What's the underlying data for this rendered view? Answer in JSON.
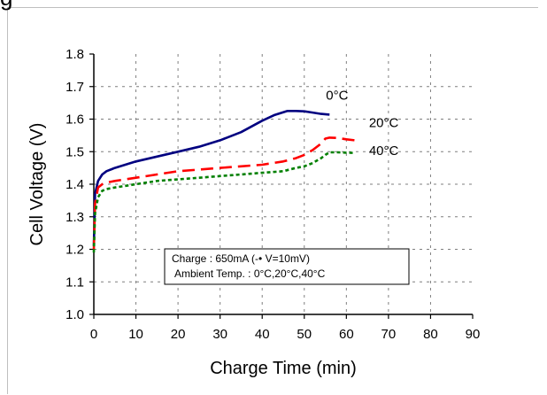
{
  "clipped_header_text": "g",
  "chart_data": {
    "type": "line",
    "xlabel": "Charge Time (min)",
    "ylabel": "Cell Voltage (V)",
    "xlim": [
      0,
      90
    ],
    "ylim": [
      1.0,
      1.8
    ],
    "x_ticks": [
      "0",
      "10",
      "20",
      "30",
      "40",
      "50",
      "60",
      "70",
      "80",
      "90"
    ],
    "y_ticks": [
      "1.0",
      "1.1",
      "1.2",
      "1.3",
      "1.4",
      "1.5",
      "1.6",
      "1.7",
      "1.8"
    ],
    "grid": "dashed",
    "series": [
      {
        "name": "0°C",
        "color": "#000080",
        "style": "solid",
        "x": [
          0,
          0.3,
          1,
          2,
          3,
          5,
          10,
          15,
          20,
          25,
          30,
          35,
          40,
          43,
          46,
          48,
          50,
          52,
          54,
          56
        ],
        "y": [
          1.21,
          1.37,
          1.41,
          1.43,
          1.44,
          1.45,
          1.47,
          1.485,
          1.5,
          1.515,
          1.535,
          1.56,
          1.595,
          1.613,
          1.625,
          1.625,
          1.624,
          1.62,
          1.616,
          1.614
        ]
      },
      {
        "name": "20°C",
        "color": "#ff0000",
        "style": "dashed",
        "x": [
          0,
          0.3,
          1,
          2,
          3,
          5,
          10,
          15,
          20,
          25,
          30,
          35,
          40,
          45,
          48,
          50,
          52,
          54,
          55,
          56,
          58,
          60,
          62
        ],
        "y": [
          1.2,
          1.34,
          1.39,
          1.4,
          1.405,
          1.41,
          1.42,
          1.43,
          1.44,
          1.445,
          1.45,
          1.455,
          1.46,
          1.47,
          1.48,
          1.49,
          1.505,
          1.525,
          1.54,
          1.543,
          1.542,
          1.538,
          1.535
        ]
      },
      {
        "name": "40°C",
        "color": "#008000",
        "style": "dotted",
        "x": [
          0,
          0.3,
          1,
          2,
          3,
          5,
          10,
          15,
          20,
          25,
          30,
          35,
          40,
          45,
          48,
          50,
          52,
          54,
          55,
          56,
          58,
          60,
          62
        ],
        "y": [
          1.19,
          1.31,
          1.36,
          1.38,
          1.385,
          1.39,
          1.4,
          1.41,
          1.415,
          1.42,
          1.425,
          1.43,
          1.435,
          1.44,
          1.45,
          1.455,
          1.465,
          1.48,
          1.49,
          1.498,
          1.498,
          1.497,
          1.496
        ]
      }
    ],
    "note": {
      "line1": "Charge : 650mA (-• V=10mV)",
      "line2": "Ambient Temp. : 0°C,20°C,40°C"
    }
  }
}
